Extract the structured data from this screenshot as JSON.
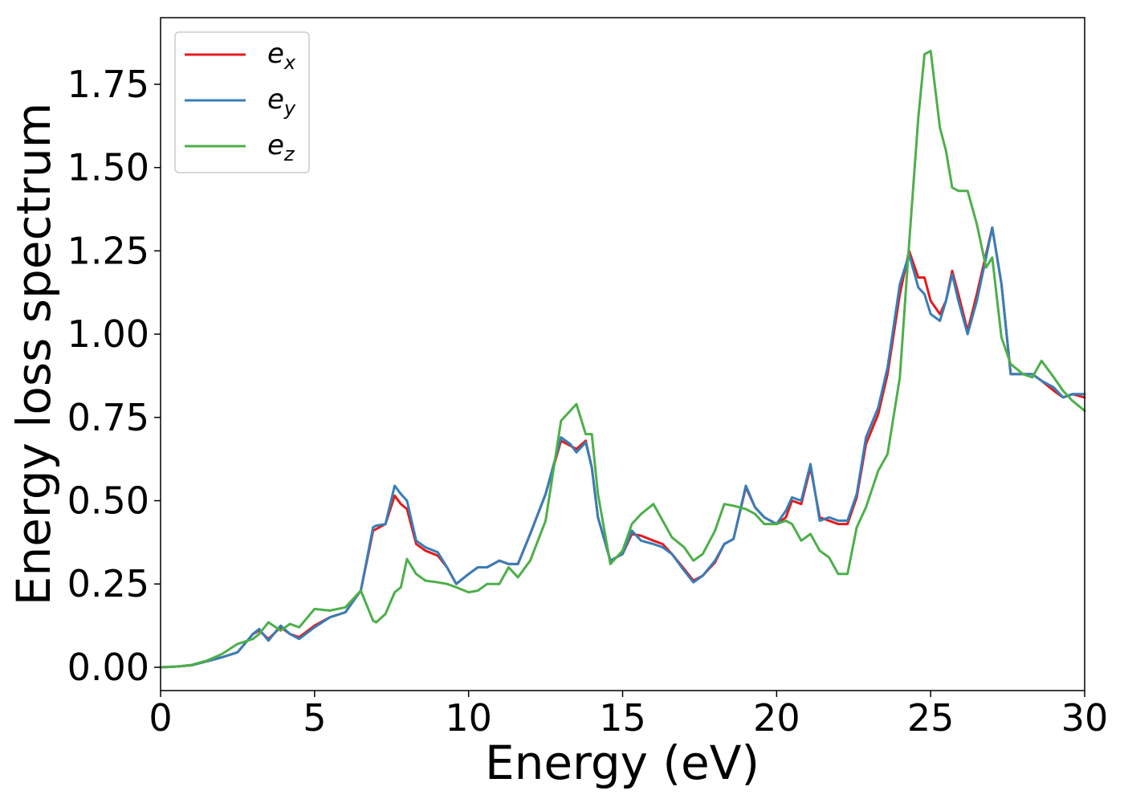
{
  "chart_data": {
    "type": "line",
    "title": "",
    "xlabel": "Energy (eV)",
    "ylabel": "Energy loss spectrum",
    "xlim": [
      0,
      30
    ],
    "ylim": [
      -0.07,
      1.95
    ],
    "xticks": [
      0,
      5,
      10,
      15,
      20,
      25,
      30
    ],
    "xtick_labels": [
      "0",
      "5",
      "10",
      "15",
      "20",
      "25",
      "30"
    ],
    "yticks": [
      0,
      0.25,
      0.5,
      0.75,
      1.0,
      1.25,
      1.5,
      1.75
    ],
    "ytick_labels": [
      "0.00",
      "0.25",
      "0.50",
      "0.75",
      "1.00",
      "1.25",
      "1.50",
      "1.75"
    ],
    "grid": false,
    "legend_position": "top-left",
    "x": [
      0,
      0.5,
      1.0,
      1.5,
      2.0,
      2.5,
      3.0,
      3.2,
      3.5,
      3.9,
      4.2,
      4.5,
      5.0,
      5.5,
      6.0,
      6.5,
      6.9,
      7.0,
      7.3,
      7.6,
      7.8,
      8.0,
      8.3,
      8.6,
      9.0,
      9.3,
      9.6,
      10.0,
      10.3,
      10.6,
      11.0,
      11.3,
      11.6,
      12.0,
      12.5,
      13.0,
      13.3,
      13.5,
      13.8,
      14.0,
      14.2,
      14.6,
      15.0,
      15.3,
      15.6,
      16.0,
      16.3,
      16.6,
      17.0,
      17.3,
      17.6,
      18.0,
      18.3,
      18.6,
      19.0,
      19.3,
      19.6,
      20.0,
      20.3,
      20.5,
      20.8,
      21.1,
      21.4,
      21.7,
      22.0,
      22.3,
      22.6,
      22.9,
      23.3,
      23.6,
      24.0,
      24.3,
      24.6,
      24.8,
      25.0,
      25.3,
      25.5,
      25.7,
      25.9,
      26.2,
      26.5,
      26.8,
      27.0,
      27.3,
      27.6,
      28.0,
      28.3,
      28.6,
      29.0,
      29.3,
      29.6,
      30.0
    ],
    "series": [
      {
        "name": "e_x",
        "label_base": "e",
        "label_sub": "x",
        "color": "#e41a1c",
        "values": [
          0.0,
          0.002,
          0.006,
          0.018,
          0.03,
          0.045,
          0.1,
          0.11,
          0.085,
          0.12,
          0.1,
          0.09,
          0.125,
          0.15,
          0.165,
          0.23,
          0.41,
          0.415,
          0.43,
          0.515,
          0.49,
          0.475,
          0.37,
          0.35,
          0.335,
          0.3,
          0.25,
          0.28,
          0.3,
          0.3,
          0.32,
          0.31,
          0.31,
          0.4,
          0.52,
          0.68,
          0.665,
          0.655,
          0.68,
          0.6,
          0.45,
          0.32,
          0.34,
          0.4,
          0.395,
          0.38,
          0.37,
          0.34,
          0.295,
          0.26,
          0.275,
          0.315,
          0.37,
          0.385,
          0.54,
          0.48,
          0.45,
          0.43,
          0.45,
          0.5,
          0.49,
          0.6,
          0.45,
          0.44,
          0.43,
          0.43,
          0.51,
          0.67,
          0.76,
          0.88,
          1.12,
          1.25,
          1.17,
          1.17,
          1.1,
          1.06,
          1.1,
          1.19,
          1.12,
          1.01,
          1.12,
          1.24,
          1.32,
          1.15,
          0.88,
          0.88,
          0.88,
          0.86,
          0.83,
          0.81,
          0.82,
          0.81
        ]
      },
      {
        "name": "e_y",
        "label_base": "e",
        "label_sub": "y",
        "color": "#377eb8",
        "values": [
          0.0,
          0.002,
          0.006,
          0.018,
          0.03,
          0.045,
          0.1,
          0.115,
          0.08,
          0.125,
          0.1,
          0.085,
          0.12,
          0.15,
          0.165,
          0.23,
          0.42,
          0.425,
          0.43,
          0.545,
          0.52,
          0.5,
          0.38,
          0.36,
          0.345,
          0.3,
          0.25,
          0.28,
          0.3,
          0.3,
          0.32,
          0.31,
          0.31,
          0.4,
          0.52,
          0.69,
          0.67,
          0.645,
          0.675,
          0.6,
          0.45,
          0.32,
          0.34,
          0.41,
          0.38,
          0.37,
          0.36,
          0.34,
          0.29,
          0.255,
          0.275,
          0.32,
          0.37,
          0.385,
          0.545,
          0.48,
          0.45,
          0.43,
          0.47,
          0.51,
          0.5,
          0.61,
          0.44,
          0.45,
          0.44,
          0.44,
          0.52,
          0.69,
          0.78,
          0.9,
          1.15,
          1.24,
          1.14,
          1.12,
          1.06,
          1.04,
          1.1,
          1.18,
          1.1,
          1.0,
          1.1,
          1.23,
          1.32,
          1.15,
          0.88,
          0.88,
          0.88,
          0.86,
          0.84,
          0.81,
          0.82,
          0.82
        ]
      },
      {
        "name": "e_z",
        "label_base": "e",
        "label_sub": "z",
        "color": "#4daf4a",
        "values": [
          0.0,
          0.002,
          0.007,
          0.02,
          0.04,
          0.07,
          0.085,
          0.1,
          0.135,
          0.11,
          0.13,
          0.12,
          0.175,
          0.17,
          0.18,
          0.23,
          0.14,
          0.135,
          0.16,
          0.225,
          0.24,
          0.325,
          0.28,
          0.26,
          0.255,
          0.25,
          0.24,
          0.225,
          0.23,
          0.25,
          0.25,
          0.3,
          0.27,
          0.32,
          0.44,
          0.74,
          0.77,
          0.79,
          0.7,
          0.7,
          0.52,
          0.31,
          0.35,
          0.43,
          0.46,
          0.49,
          0.44,
          0.39,
          0.36,
          0.32,
          0.34,
          0.41,
          0.49,
          0.485,
          0.475,
          0.46,
          0.43,
          0.43,
          0.44,
          0.43,
          0.38,
          0.4,
          0.35,
          0.33,
          0.28,
          0.28,
          0.42,
          0.48,
          0.59,
          0.64,
          0.87,
          1.27,
          1.65,
          1.84,
          1.85,
          1.62,
          1.55,
          1.44,
          1.43,
          1.43,
          1.33,
          1.2,
          1.23,
          0.99,
          0.91,
          0.88,
          0.87,
          0.92,
          0.87,
          0.83,
          0.8,
          0.77
        ]
      }
    ]
  }
}
